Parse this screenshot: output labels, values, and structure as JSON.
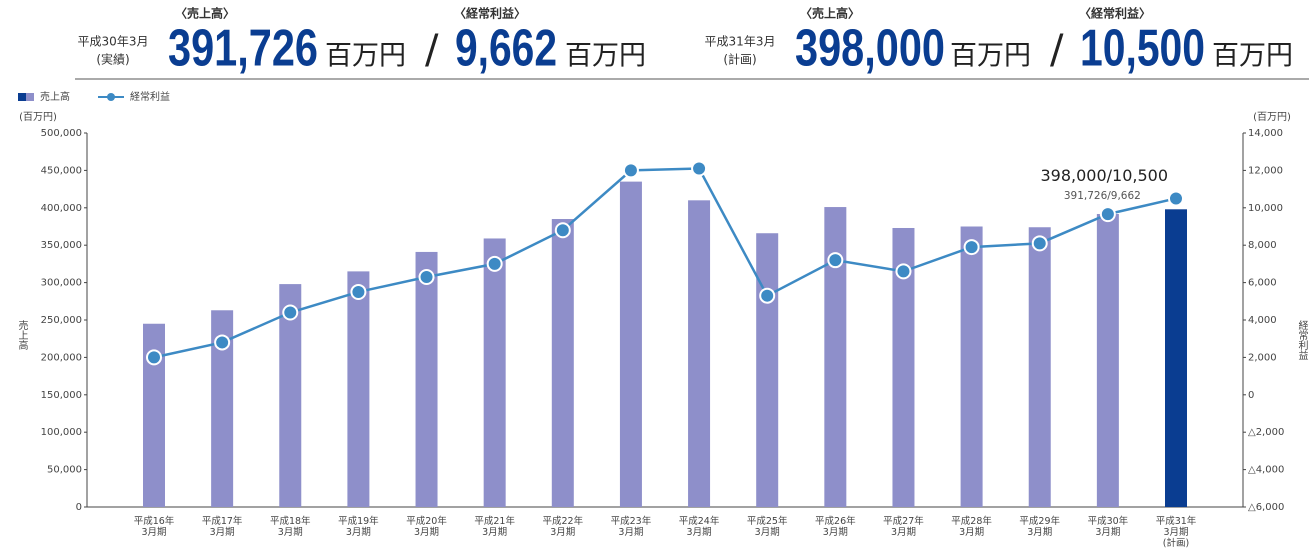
{
  "header": {
    "actual": {
      "period": "平成30年3月",
      "note": "(実績)",
      "sales_label": "〈売上高〉",
      "sales": "391,726",
      "sales_unit": "百万円",
      "separator": "/",
      "profit_label": "〈経常利益〉",
      "profit": "9,662",
      "profit_unit": "百万円"
    },
    "plan": {
      "period": "平成31年3月",
      "note": "(計画)",
      "sales_label": "〈売上高〉",
      "sales": "398,000",
      "sales_unit": "百万円",
      "separator": "/",
      "profit_label": "〈経常利益〉",
      "profit": "10,500",
      "profit_unit": "百万円"
    }
  },
  "chart_data": {
    "type": "bar",
    "ylabel": "売上高",
    "y2label": "経常利益",
    "yunit": "(百万円)",
    "y2unit": "(百万円)",
    "categories": [
      "平成16年\n3月期",
      "平成17年\n3月期",
      "平成18年\n3月期",
      "平成19年\n3月期",
      "平成20年\n3月期",
      "平成21年\n3月期",
      "平成22年\n3月期",
      "平成23年\n3月期",
      "平成24年\n3月期",
      "平成25年\n3月期",
      "平成26年\n3月期",
      "平成27年\n3月期",
      "平成28年\n3月期",
      "平成29年\n3月期",
      "平成30年\n3月期",
      "平成31年\n3月期\n(計画)"
    ],
    "series": [
      {
        "name": "売上高",
        "type": "bar",
        "color": "#8e8fca",
        "colors": [
          "#8e8fca",
          "#8e8fca",
          "#8e8fca",
          "#8e8fca",
          "#8e8fca",
          "#8e8fca",
          "#8e8fca",
          "#8e8fca",
          "#8e8fca",
          "#8e8fca",
          "#8e8fca",
          "#8e8fca",
          "#8e8fca",
          "#8e8fca",
          "#8e8fca",
          "#0a3d91"
        ],
        "values": [
          245000,
          263000,
          298000,
          315000,
          341000,
          359000,
          385000,
          435000,
          410000,
          366000,
          401000,
          373000,
          375000,
          374000,
          391726,
          398000
        ]
      },
      {
        "name": "経常利益",
        "type": "line",
        "axis": "y2",
        "color": "#3d8ac4",
        "values": [
          2000,
          2800,
          4400,
          5500,
          6300,
          7000,
          8800,
          12000,
          12100,
          5300,
          7200,
          6600,
          7900,
          8100,
          9662,
          10500
        ]
      }
    ],
    "annotations": [
      {
        "text": "391,726/9,662",
        "index": 14
      },
      {
        "text": "398,000/10,500",
        "index": 15
      }
    ],
    "ylim": [
      0,
      500000
    ],
    "yticks": [
      0,
      {
        "value": 50000,
        "label": "50,000"
      },
      {
        "value": 100000,
        "label": "100,000"
      },
      {
        "value": 150000,
        "label": "150,000"
      },
      {
        "value": 200000,
        "label": "200,000"
      },
      {
        "value": 250000,
        "label": "250,000"
      },
      {
        "value": 300000,
        "label": "300,000"
      },
      {
        "value": 350000,
        "label": "350,000"
      },
      {
        "value": 400000,
        "label": "400,000"
      },
      {
        "value": 450000,
        "label": "450,000"
      },
      {
        "value": 500000,
        "label": "500,000"
      }
    ],
    "y2lim": [
      -6000,
      14000
    ],
    "y2ticks": [
      {
        "value": -6000,
        "label": "△6,000"
      },
      {
        "value": -4000,
        "label": "△4,000"
      },
      {
        "value": -2000,
        "label": "△2,000"
      },
      0,
      {
        "value": 2000,
        "label": "2,000"
      },
      {
        "value": 4000,
        "label": "4,000"
      },
      {
        "value": 6000,
        "label": "6,000"
      },
      {
        "value": 8000,
        "label": "8,000"
      },
      {
        "value": 10000,
        "label": "10,000"
      },
      {
        "value": 12000,
        "label": "12,000"
      },
      {
        "value": 14000,
        "label": "14,000"
      }
    ],
    "grid": false
  }
}
